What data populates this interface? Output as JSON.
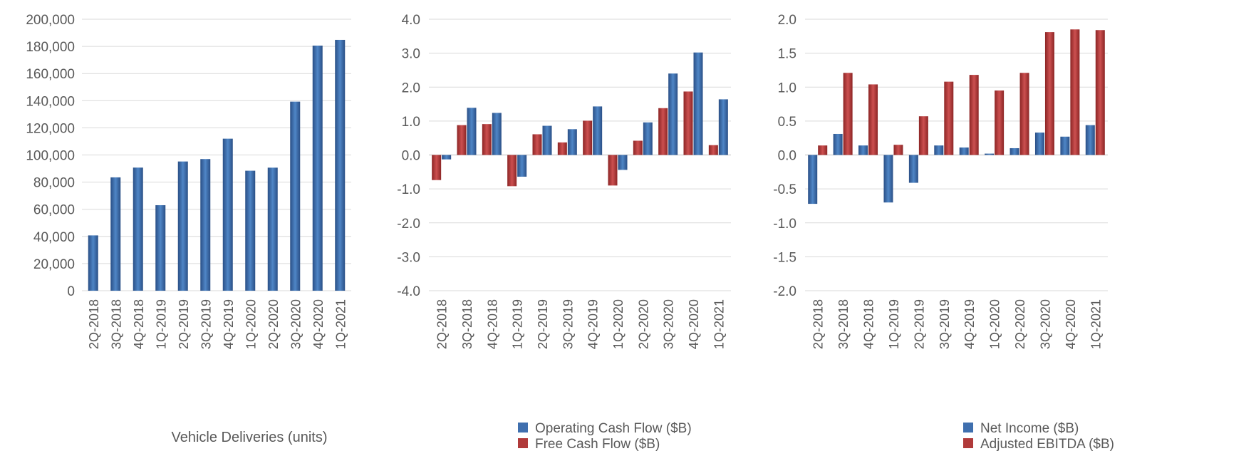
{
  "categories": [
    "2Q-2018",
    "3Q-2018",
    "4Q-2018",
    "1Q-2019",
    "2Q-2019",
    "3Q-2019",
    "4Q-2019",
    "1Q-2020",
    "2Q-2020",
    "3Q-2020",
    "4Q-2020",
    "1Q-2021"
  ],
  "colors": {
    "blue": "#3f6fae",
    "red": "#b03a3a",
    "grid": "#d9d9d9",
    "text": "#595959"
  },
  "chart_data": [
    {
      "type": "bar",
      "xlabel": "Vehicle Deliveries (units)",
      "ylim": [
        0,
        200000
      ],
      "ticks": [
        "0",
        "20,000",
        "40,000",
        "60,000",
        "80,000",
        "100,000",
        "120,000",
        "140,000",
        "160,000",
        "180,000",
        "200,000"
      ],
      "grid": true,
      "series": [
        {
          "color": "#3f6fae",
          "values": [
            40740,
            83500,
            90700,
            63000,
            95200,
            97000,
            112000,
            88400,
            90650,
            139300,
            180570,
            184800
          ]
        }
      ]
    },
    {
      "type": "bar",
      "ylim": [
        -4.0,
        4.0
      ],
      "ticks": [
        "-4.0",
        "-3.0",
        "-2.0",
        "-1.0",
        "0.0",
        "1.0",
        "2.0",
        "3.0",
        "4.0"
      ],
      "grid": true,
      "legend_position": "bottom",
      "series": [
        {
          "name": "Free Cash Flow ($B)",
          "color": "#b03a3a",
          "values": [
            -0.74,
            0.88,
            0.91,
            -0.92,
            0.61,
            0.37,
            1.01,
            -0.9,
            0.42,
            1.38,
            1.87,
            0.29
          ]
        },
        {
          "name": "Operating Cash Flow ($B)",
          "color": "#3f6fae",
          "values": [
            -0.13,
            1.39,
            1.24,
            -0.64,
            0.86,
            0.76,
            1.43,
            -0.44,
            0.96,
            2.4,
            3.02,
            1.64
          ]
        }
      ],
      "legend": [
        "Operating Cash Flow ($B)",
        "Free Cash Flow ($B)"
      ]
    },
    {
      "type": "bar",
      "ylim": [
        -2.0,
        2.0
      ],
      "ticks": [
        "-2.0",
        "-1.5",
        "-1.0",
        "-0.5",
        "0.0",
        "0.5",
        "1.0",
        "1.5",
        "2.0"
      ],
      "grid": true,
      "legend_position": "bottom",
      "series": [
        {
          "name": "Net Income ($B)",
          "color": "#3f6fae",
          "values": [
            -0.72,
            0.31,
            0.14,
            -0.7,
            -0.41,
            0.14,
            0.11,
            0.02,
            0.1,
            0.33,
            0.27,
            0.44
          ]
        },
        {
          "name": "Adjusted EBITDA ($B)",
          "color": "#b03a3a",
          "values": [
            0.14,
            1.21,
            1.04,
            0.15,
            0.57,
            1.08,
            1.18,
            0.95,
            1.21,
            1.81,
            1.85,
            1.84
          ]
        }
      ],
      "legend": [
        "Net Income ($B)",
        "Adjusted EBITDA ($B)"
      ]
    }
  ]
}
